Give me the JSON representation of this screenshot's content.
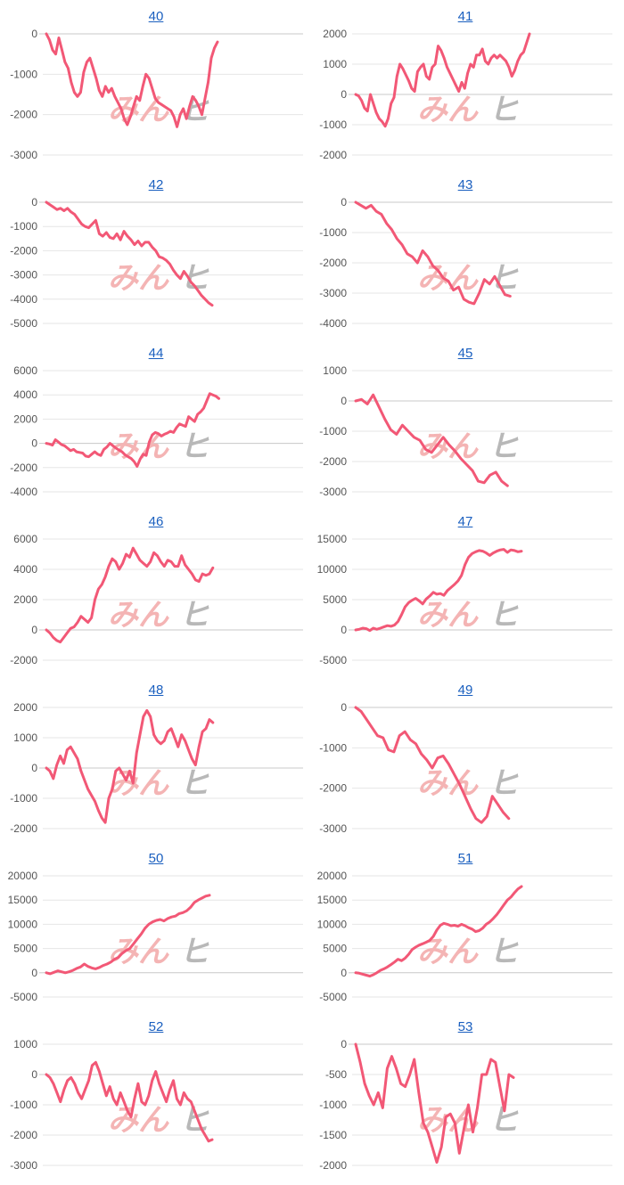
{
  "colors": {
    "line": "#f25876",
    "grid": "#e6e6e6",
    "zero_axis": "#c8c8c8",
    "link": "#1a5fbf"
  },
  "watermark": {
    "part1": "みん",
    "part2": "ヒ"
  },
  "chart_data": [
    {
      "type": "line",
      "title": "40",
      "yticks": [
        0,
        -1000,
        -2000,
        -3000
      ],
      "ylim": [
        -3000,
        0
      ],
      "values": [
        0,
        -150,
        -400,
        -500,
        -100,
        -400,
        -700,
        -850,
        -1200,
        -1450,
        -1550,
        -1450,
        -950,
        -700,
        -600,
        -850,
        -1100,
        -1400,
        -1550,
        -1300,
        -1450,
        -1350,
        -1550,
        -1700,
        -1850,
        -2100,
        -2250,
        -2050,
        -1800,
        -1550,
        -1650,
        -1300,
        -1000,
        -1100,
        -1350,
        -1600,
        -1700,
        -1750,
        -1800,
        -1850,
        -1900,
        -2050,
        -2300,
        -2000,
        -1850,
        -2100,
        -1800,
        -1550,
        -1650,
        -1800,
        -2000,
        -1600,
        -1200,
        -600,
        -350,
        -200
      ]
    },
    {
      "type": "line",
      "title": "41",
      "yticks": [
        2000,
        1000,
        0,
        -1000,
        -2000
      ],
      "ylim": [
        -2000,
        2000
      ],
      "values": [
        0,
        -50,
        -200,
        -450,
        -550,
        0,
        -300,
        -600,
        -800,
        -900,
        -1050,
        -800,
        -300,
        -100,
        600,
        1000,
        850,
        650,
        450,
        200,
        100,
        750,
        900,
        1000,
        600,
        500,
        900,
        1000,
        1600,
        1450,
        1200,
        900,
        700,
        500,
        300,
        100,
        400,
        200,
        700,
        1000,
        900,
        1300,
        1300,
        1500,
        1100,
        1000,
        1200,
        1300,
        1200,
        1300,
        1200,
        1100,
        900,
        600,
        800,
        1100,
        1300,
        1400,
        1700,
        2000
      ]
    },
    {
      "type": "line",
      "title": "42",
      "yticks": [
        0,
        -1000,
        -2000,
        -3000,
        -4000,
        -5000
      ],
      "ylim": [
        -5000,
        0
      ],
      "values": [
        0,
        -100,
        -200,
        -300,
        -250,
        -350,
        -250,
        -400,
        -500,
        -700,
        -900,
        -1000,
        -1050,
        -900,
        -750,
        -1300,
        -1400,
        -1250,
        -1450,
        -1500,
        -1300,
        -1550,
        -1200,
        -1400,
        -1550,
        -1750,
        -1600,
        -1800,
        -1650,
        -1650,
        -1850,
        -2000,
        -2250,
        -2300,
        -2400,
        -2550,
        -2800,
        -3000,
        -3150,
        -2850,
        -3050,
        -3300,
        -3450,
        -3650,
        -3850,
        -4000,
        -4150,
        -4250
      ]
    },
    {
      "type": "line",
      "title": "43",
      "yticks": [
        0,
        -1000,
        -2000,
        -3000,
        -4000
      ],
      "ylim": [
        -4000,
        0
      ],
      "values": [
        0,
        -100,
        -200,
        -100,
        -300,
        -400,
        -700,
        -900,
        -1200,
        -1400,
        -1700,
        -1800,
        -2000,
        -1600,
        -1800,
        -2100,
        -2250,
        -2500,
        -2600,
        -2900,
        -2800,
        -3200,
        -3300,
        -3350,
        -3000,
        -2550,
        -2700,
        -2450,
        -2750,
        -3050,
        -3100
      ]
    },
    {
      "type": "line",
      "title": "44",
      "yticks": [
        6000,
        4000,
        2000,
        0,
        -2000,
        -4000
      ],
      "ylim": [
        -4000,
        6000
      ],
      "values": [
        0,
        -50,
        -150,
        300,
        100,
        -100,
        -200,
        -400,
        -600,
        -500,
        -700,
        -750,
        -800,
        -1050,
        -1100,
        -900,
        -700,
        -900,
        -1000,
        -500,
        -300,
        0,
        -200,
        -400,
        -550,
        -700,
        -950,
        -1100,
        -1250,
        -1500,
        -1900,
        -1300,
        -900,
        -1000,
        100,
        700,
        900,
        800,
        600,
        750,
        850,
        1000,
        900,
        1300,
        1600,
        1500,
        1400,
        2200,
        2000,
        1800,
        2400,
        2600,
        2900,
        3500,
        4100,
        4000,
        3900,
        3700
      ]
    },
    {
      "type": "line",
      "title": "45",
      "yticks": [
        1000,
        0,
        -1000,
        -2000,
        -3000
      ],
      "ylim": [
        -3000,
        1000
      ],
      "values": [
        0,
        50,
        -100,
        200,
        -200,
        -600,
        -950,
        -1100,
        -800,
        -1000,
        -1200,
        -1300,
        -1600,
        -1700,
        -1450,
        -1200,
        -1450,
        -1650,
        -1900,
        -2100,
        -2300,
        -2650,
        -2700,
        -2450,
        -2350,
        -2650,
        -2800
      ]
    },
    {
      "type": "line",
      "title": "46",
      "yticks": [
        6000,
        4000,
        2000,
        0,
        -2000
      ],
      "ylim": [
        -2000,
        6000
      ],
      "values": [
        0,
        -200,
        -500,
        -700,
        -800,
        -500,
        -200,
        100,
        200,
        500,
        900,
        700,
        500,
        800,
        2000,
        2700,
        3000,
        3500,
        4200,
        4700,
        4500,
        4000,
        4400,
        5000,
        4800,
        5400,
        5000,
        4600,
        4400,
        4200,
        4500,
        5100,
        4900,
        4500,
        4200,
        4600,
        4500,
        4200,
        4200,
        4900,
        4300,
        4000,
        3700,
        3300,
        3200,
        3700,
        3600,
        3700,
        4100
      ]
    },
    {
      "type": "line",
      "title": "47",
      "yticks": [
        15000,
        10000,
        5000,
        0,
        -5000
      ],
      "ylim": [
        -5000,
        15000
      ],
      "values": [
        0,
        100,
        300,
        200,
        -100,
        300,
        100,
        300,
        500,
        700,
        600,
        800,
        1400,
        2500,
        3800,
        4500,
        4900,
        5200,
        4800,
        4300,
        5100,
        5600,
        6200,
        5900,
        6000,
        5700,
        6500,
        7000,
        7500,
        8100,
        9000,
        10800,
        12000,
        12600,
        12900,
        13100,
        13000,
        12700,
        12300,
        12700,
        13000,
        13200,
        13300,
        12800,
        13200,
        13100,
        12900,
        13000
      ]
    },
    {
      "type": "line",
      "title": "48",
      "yticks": [
        2000,
        1000,
        0,
        -1000,
        -2000
      ],
      "ylim": [
        -2000,
        2000
      ],
      "values": [
        0,
        -100,
        -350,
        100,
        400,
        150,
        600,
        700,
        500,
        300,
        -100,
        -400,
        -700,
        -900,
        -1100,
        -1400,
        -1650,
        -1800,
        -1000,
        -700,
        -100,
        0,
        -200,
        -400,
        -100,
        -500,
        500,
        1100,
        1700,
        1900,
        1700,
        1100,
        900,
        800,
        900,
        1200,
        1300,
        1000,
        700,
        1100,
        900,
        600,
        300,
        100,
        700,
        1200,
        1300,
        1600,
        1500
      ]
    },
    {
      "type": "line",
      "title": "49",
      "yticks": [
        0,
        -1000,
        -2000,
        -3000
      ],
      "ylim": [
        -3000,
        0
      ],
      "values": [
        0,
        -100,
        -300,
        -500,
        -700,
        -750,
        -1050,
        -1100,
        -700,
        -600,
        -800,
        -900,
        -1150,
        -1300,
        -1500,
        -1250,
        -1200,
        -1400,
        -1650,
        -1900,
        -2200,
        -2500,
        -2750,
        -2850,
        -2700,
        -2200,
        -2400,
        -2600,
        -2750
      ]
    },
    {
      "type": "line",
      "title": "50",
      "yticks": [
        20000,
        15000,
        10000,
        5000,
        0,
        -5000
      ],
      "ylim": [
        -5000,
        20000
      ],
      "values": [
        0,
        -200,
        100,
        400,
        200,
        0,
        200,
        500,
        900,
        1200,
        1800,
        1300,
        1000,
        800,
        1100,
        1500,
        1800,
        2200,
        2800,
        3200,
        4000,
        4600,
        5000,
        6000,
        7000,
        8000,
        9200,
        10000,
        10500,
        10800,
        11000,
        10700,
        11200,
        11500,
        11700,
        12200,
        12400,
        12800,
        13500,
        14500,
        15000,
        15400,
        15800,
        16000
      ]
    },
    {
      "type": "line",
      "title": "51",
      "yticks": [
        20000,
        15000,
        10000,
        5000,
        0,
        -5000
      ],
      "ylim": [
        -5000,
        20000
      ],
      "values": [
        0,
        -100,
        -300,
        -500,
        -700,
        -400,
        0,
        500,
        800,
        1200,
        1700,
        2200,
        2800,
        2500,
        3000,
        3800,
        4800,
        5300,
        5700,
        6000,
        6300,
        6700,
        7500,
        8800,
        9800,
        10200,
        10000,
        9700,
        9800,
        9600,
        10000,
        9700,
        9300,
        9000,
        8500,
        8700,
        9200,
        10000,
        10500,
        11200,
        12000,
        13000,
        14000,
        15000,
        15600,
        16500,
        17300,
        17800
      ]
    },
    {
      "type": "line",
      "title": "52",
      "yticks": [
        1000,
        0,
        -1000,
        -2000,
        -3000
      ],
      "ylim": [
        -3000,
        1000
      ],
      "values": [
        0,
        -100,
        -300,
        -600,
        -900,
        -500,
        -200,
        -100,
        -300,
        -600,
        -800,
        -500,
        -200,
        300,
        400,
        100,
        -300,
        -700,
        -400,
        -800,
        -1000,
        -600,
        -900,
        -1200,
        -1400,
        -800,
        -300,
        -900,
        -1000,
        -700,
        -200,
        100,
        -300,
        -600,
        -900,
        -500,
        -200,
        -800,
        -1000,
        -600,
        -800,
        -900,
        -1200,
        -1500,
        -1800,
        -2000,
        -2200,
        -2150
      ]
    },
    {
      "type": "line",
      "title": "53",
      "yticks": [
        0,
        -500,
        -1000,
        -1500,
        -2000
      ],
      "ylim": [
        -2000,
        0
      ],
      "values": [
        0,
        -300,
        -650,
        -850,
        -1000,
        -800,
        -1050,
        -400,
        -200,
        -400,
        -650,
        -700,
        -500,
        -250,
        -800,
        -1300,
        -1450,
        -1700,
        -1950,
        -1700,
        -1200,
        -1150,
        -1300,
        -1800,
        -1400,
        -1000,
        -1450,
        -1050,
        -500,
        -500,
        -250,
        -300,
        -700,
        -1100,
        -500,
        -550
      ]
    }
  ]
}
